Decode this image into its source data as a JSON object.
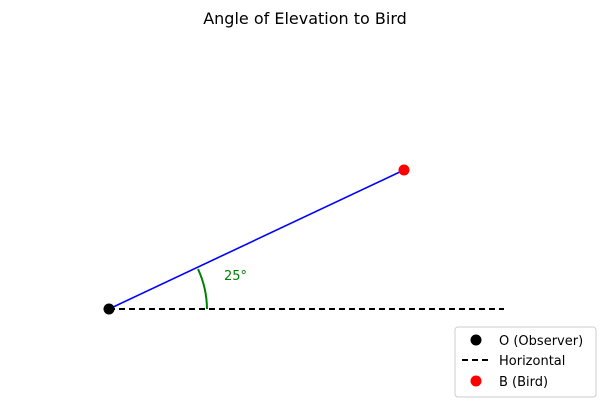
{
  "title": "Angle of Elevation to Bird",
  "angle": {
    "label": "25°",
    "degrees": 25
  },
  "points": {
    "observer": {
      "color": "#000000"
    },
    "bird": {
      "color": "#ff0000"
    }
  },
  "lines": {
    "sight": {
      "color": "#0000ff"
    },
    "horizontal": {
      "color": "#000000"
    },
    "arc": {
      "color": "#008000"
    }
  },
  "legend": {
    "items": [
      {
        "label": "O (Observer)",
        "kind": "marker",
        "color": "#000000"
      },
      {
        "label": "Horizontal",
        "kind": "dashed-line",
        "color": "#000000"
      },
      {
        "label": "B (Bird)",
        "kind": "marker",
        "color": "#ff0000"
      }
    ]
  }
}
